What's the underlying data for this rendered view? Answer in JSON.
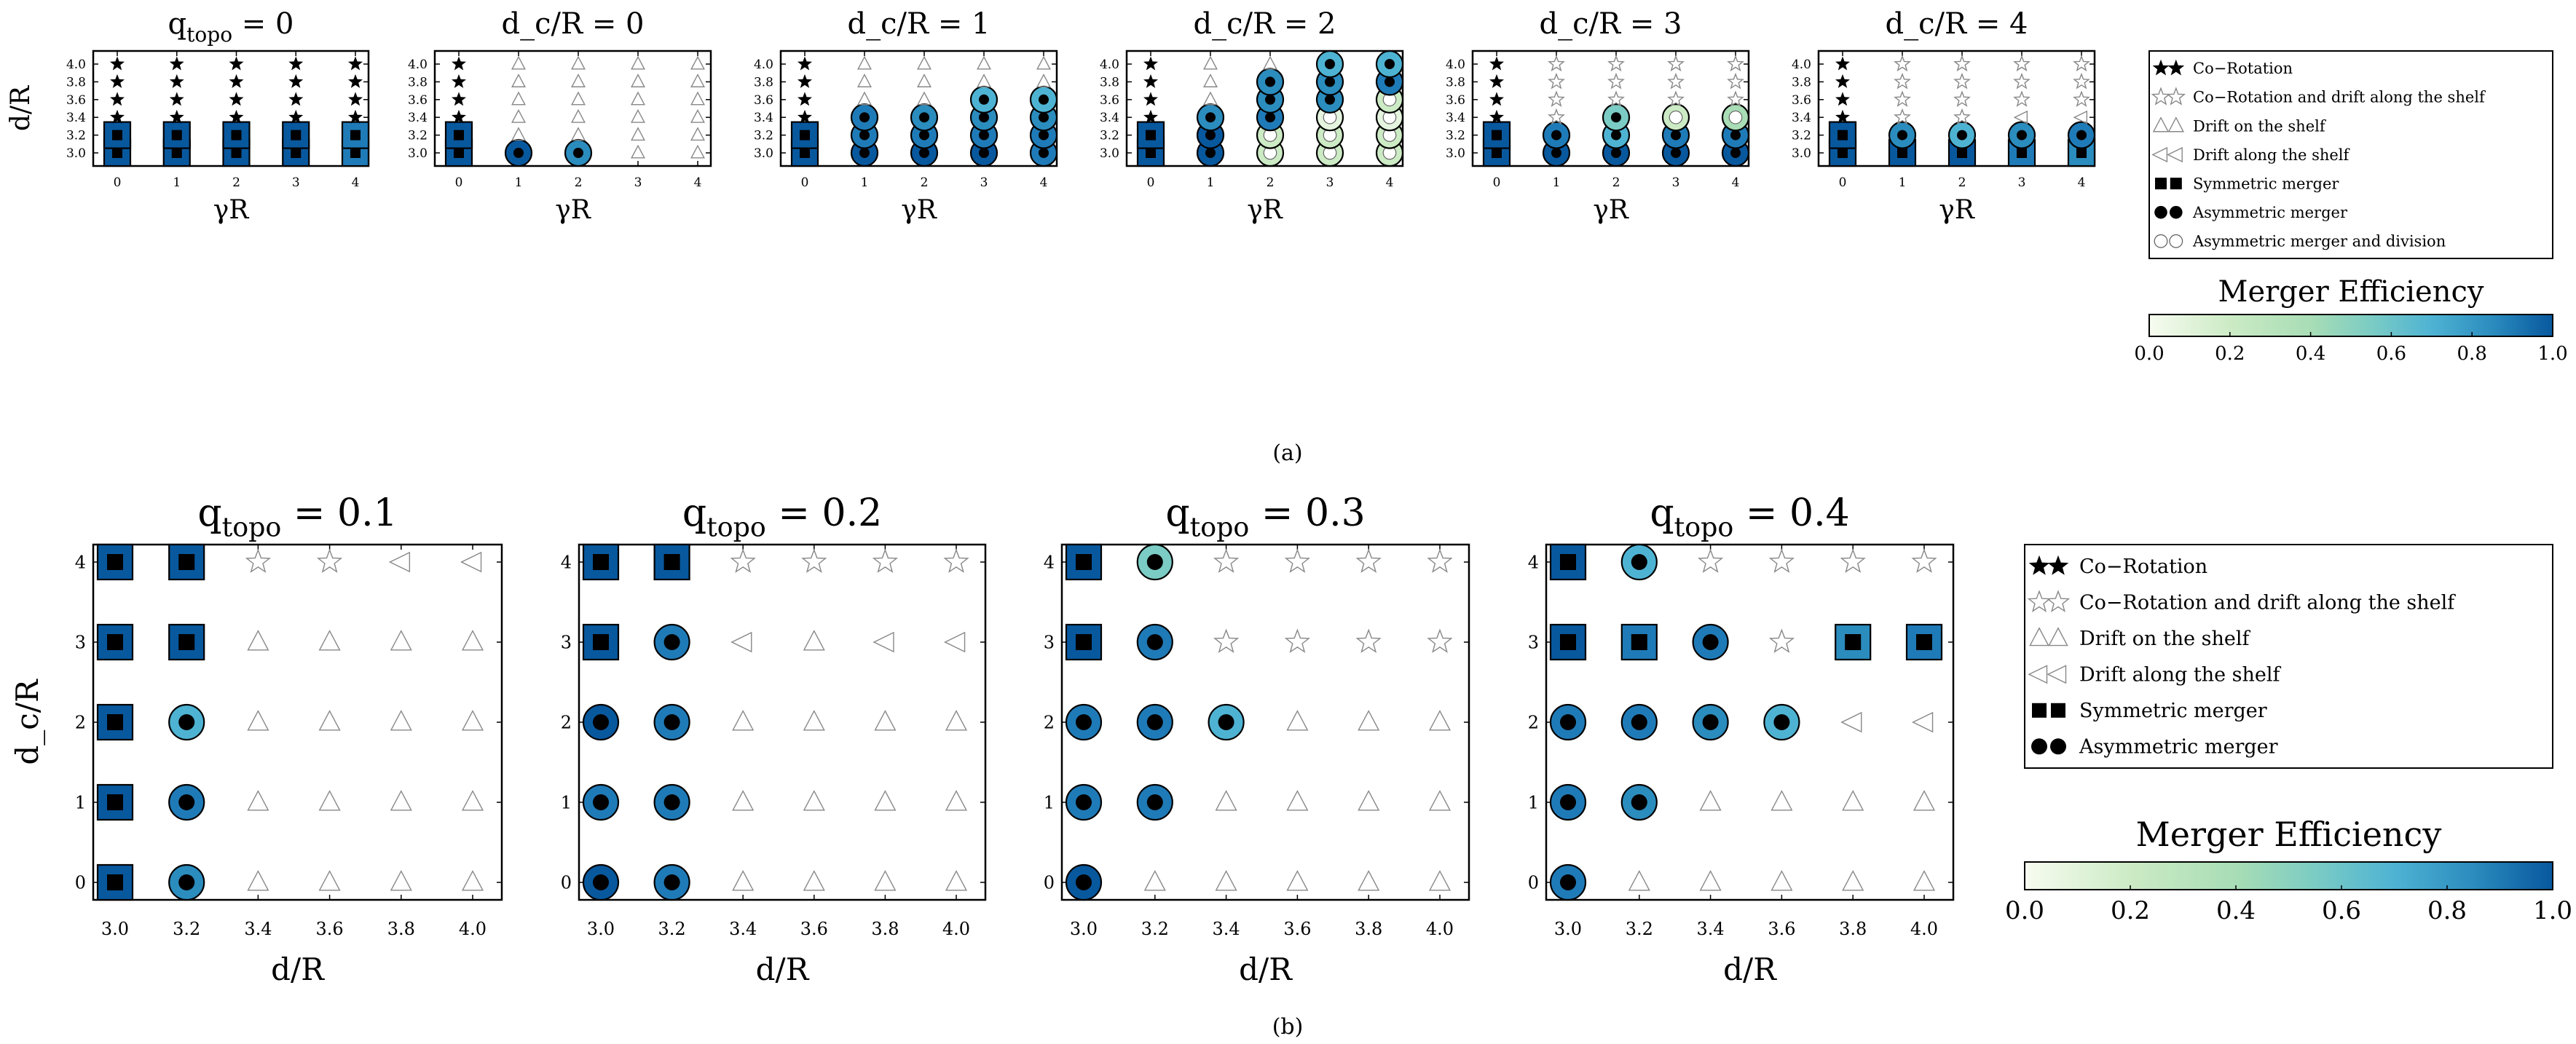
{
  "figure": {
    "caption_a": "(a)",
    "caption_b": "(b)",
    "efficiency_colors": [
      "#f7fcf0",
      "#ccebc5",
      "#7bccc4",
      "#4eb3d3",
      "#2b8cbe",
      "#08589e"
    ]
  },
  "legend_a": {
    "colorbar_title": "Merger Efficiency",
    "colorbar_ticks": [
      "0.0",
      "0.2",
      "0.4",
      "0.6",
      "0.8",
      "1.0"
    ],
    "items": [
      {
        "symbol": "filled-star",
        "label": "Co−Rotation"
      },
      {
        "symbol": "open-star",
        "label": "Co−Rotation and drift along the shelf"
      },
      {
        "symbol": "open-triangle",
        "label": "Drift on the shelf"
      },
      {
        "symbol": "open-left-triangle",
        "label": "Drift along the shelf"
      },
      {
        "symbol": "filled-square",
        "label": "Symmetric merger"
      },
      {
        "symbol": "filled-circle",
        "label": "Asymmetric merger"
      },
      {
        "symbol": "open-circle",
        "label": "Asymmetric merger and division"
      }
    ]
  },
  "legend_b": {
    "colorbar_title": "Merger Efficiency",
    "colorbar_ticks": [
      "0.0",
      "0.2",
      "0.4",
      "0.6",
      "0.8",
      "1.0"
    ],
    "items": [
      {
        "symbol": "filled-star",
        "label": "Co−Rotation"
      },
      {
        "symbol": "open-star",
        "label": "Co−Rotation and drift along the shelf"
      },
      {
        "symbol": "open-triangle",
        "label": "Drift on the shelf"
      },
      {
        "symbol": "open-left-triangle",
        "label": "Drift along the shelf"
      },
      {
        "symbol": "filled-square",
        "label": "Symmetric merger"
      },
      {
        "symbol": "filled-circle",
        "label": "Asymmetric merger"
      }
    ]
  },
  "chart_data": [
    {
      "type": "scatter",
      "panel": "a1",
      "title": "q_topo = 0",
      "xlabel": "γR",
      "ylabel": "d/R",
      "x_ticks": [
        "0",
        "1",
        "2",
        "3",
        "4"
      ],
      "y_ticks": [
        "3.0",
        "3.2",
        "3.4",
        "3.6",
        "3.8",
        "4.0"
      ],
      "grid": [
        "S8 S8 S8 S8 S7",
        "S8 S8 S8 S8 S7",
        "F F F F F",
        "F F F F F",
        "F F F F F",
        "F F F F F"
      ]
    },
    {
      "type": "scatter",
      "panel": "a2",
      "title": "d_c/R = 0",
      "xlabel": "γR",
      "ylabel": "",
      "x_ticks": [
        "0",
        "1",
        "2",
        "3",
        "4"
      ],
      "y_ticks": [
        "3.0",
        "3.2",
        "3.4",
        "3.6",
        "3.8",
        "4.0"
      ],
      "grid": [
        "S8 A8 A6 T T",
        "S8 T T T T",
        "F T T T T",
        "F T T T T",
        "F T T T T",
        "F T T T T"
      ]
    },
    {
      "type": "scatter",
      "panel": "a3",
      "title": "d_c/R = 1",
      "xlabel": "γR",
      "ylabel": "",
      "x_ticks": [
        "0",
        "1",
        "2",
        "3",
        "4"
      ],
      "y_ticks": [
        "3.0",
        "3.2",
        "3.4",
        "3.6",
        "3.8",
        "4.0"
      ],
      "grid": [
        "S8 A8 A8 A8 A7",
        "S8 A7 A7 A7 A7",
        "F A7 A6 A6 A6",
        "F T T A5 A5",
        "F T T T T",
        "F T T T T"
      ]
    },
    {
      "type": "scatter",
      "panel": "a4",
      "title": "d_c/R = 2",
      "xlabel": "γR",
      "ylabel": "",
      "x_ticks": [
        "0",
        "1",
        "2",
        "3",
        "4"
      ],
      "y_ticks": [
        "3.0",
        "3.2",
        "3.4",
        "3.6",
        "3.8",
        "4.0"
      ],
      "grid": [
        "S8 A8 O2 O2 O2",
        "S8 A8 O2 O2 O2",
        "F A6 A7 O1 O1",
        "F T A6 A6 O2",
        "F T A6 A6 A7",
        "F T T A5 A5"
      ]
    },
    {
      "type": "scatter",
      "panel": "a5",
      "title": "d_c/R = 3",
      "xlabel": "γR",
      "ylabel": "",
      "x_ticks": [
        "0",
        "1",
        "2",
        "3",
        "4"
      ],
      "y_ticks": [
        "3.0",
        "3.2",
        "3.4",
        "3.6",
        "3.8",
        "4.0"
      ],
      "grid": [
        "S8 A8 A8 A8 A8",
        "S8 A7 A5 A7 A7",
        "F E A4 O2 O3",
        "F E E E E",
        "F E E E E",
        "F E E E E"
      ]
    },
    {
      "type": "scatter",
      "panel": "a6",
      "title": "d_c/R = 4",
      "xlabel": "γR",
      "ylabel": "",
      "x_ticks": [
        "0",
        "1",
        "2",
        "3",
        "4"
      ],
      "y_ticks": [
        "3.0",
        "3.2",
        "3.4",
        "3.6",
        "3.8",
        "4.0"
      ],
      "grid": [
        "S8 S8 S8 S7 S6",
        "S8 A6 A5 A6 A7",
        "F E E L L",
        "F E E E E",
        "F E E E E",
        "F E E E E"
      ]
    },
    {
      "type": "scatter",
      "panel": "b1",
      "title": "q_topo = 0.1",
      "xlabel": "d/R",
      "ylabel": "d_c/R",
      "x_ticks": [
        "3.0",
        "3.2",
        "3.4",
        "3.6",
        "3.8",
        "4.0"
      ],
      "y_ticks": [
        "0",
        "1",
        "2",
        "3",
        "4"
      ],
      "grid": [
        "S8 A6 T T T T",
        "S8 A7 T T T T",
        "S8 A5 T T T T",
        "S8 S8 T T T T",
        "S8 S8 E E L L"
      ]
    },
    {
      "type": "scatter",
      "panel": "b2",
      "title": "q_topo = 0.2",
      "xlabel": "d/R",
      "ylabel": "",
      "x_ticks": [
        "3.0",
        "3.2",
        "3.4",
        "3.6",
        "3.8",
        "4.0"
      ],
      "y_ticks": [
        "0",
        "1",
        "2",
        "3",
        "4"
      ],
      "grid": [
        "A8 A7 T T T T",
        "A7 A7 T T T T",
        "A8 A7 T T T T",
        "S8 A7 L T L L",
        "S8 S8 E E E E"
      ]
    },
    {
      "type": "scatter",
      "panel": "b3",
      "title": "q_topo = 0.3",
      "xlabel": "d/R",
      "ylabel": "",
      "x_ticks": [
        "3.0",
        "3.2",
        "3.4",
        "3.6",
        "3.8",
        "4.0"
      ],
      "y_ticks": [
        "0",
        "1",
        "2",
        "3",
        "4"
      ],
      "grid": [
        "A8 T T T T T",
        "A7 A7 T T T T",
        "A7 A7 A5 T T T",
        "S8 A7 E E E E",
        "S8 A4 E E E E"
      ]
    },
    {
      "type": "scatter",
      "panel": "b4",
      "title": "q_topo = 0.4",
      "xlabel": "d/R",
      "ylabel": "",
      "x_ticks": [
        "3.0",
        "3.2",
        "3.4",
        "3.6",
        "3.8",
        "4.0"
      ],
      "y_ticks": [
        "0",
        "1",
        "2",
        "3",
        "4"
      ],
      "grid": [
        "A7 T T T T T",
        "A7 A6 T T T T",
        "A7 A7 A6 A5 L L",
        "S8 S7 A7 E S6 S7",
        "S8 A5 E E E E"
      ]
    }
  ]
}
